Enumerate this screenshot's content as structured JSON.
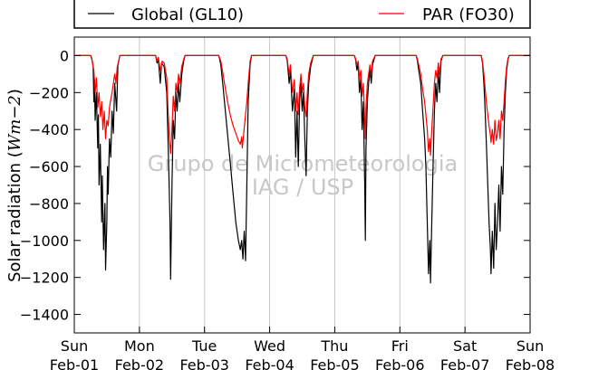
{
  "chart_data": {
    "type": "line",
    "ylabel": "Solar radiation ($Wm{-2}$)",
    "ylabel_text": "Solar radiation (",
    "ylabel_math": "Wm−2",
    "ylabel_close": ")",
    "ylim": [
      -1500,
      100
    ],
    "yticks": [
      0,
      -200,
      -400,
      -600,
      -800,
      -1000,
      -1200,
      -1400
    ],
    "xlim": [
      0,
      7
    ],
    "xticks": [
      {
        "day": "Sun",
        "date": "Feb-01"
      },
      {
        "day": "Mon",
        "date": "Feb-02"
      },
      {
        "day": "Tue",
        "date": "Feb-03"
      },
      {
        "day": "Wed",
        "date": "Feb-04"
      },
      {
        "day": "Thu",
        "date": "Feb-05"
      },
      {
        "day": "Fri",
        "date": "Feb-06"
      },
      {
        "day": "Sat",
        "date": "Feb-07"
      },
      {
        "day": "Sun",
        "date": "Feb-08"
      }
    ],
    "grid": "vertical",
    "legend_position": "top, outside plot",
    "watermark": [
      "Grupo de Micrometeorologia",
      "IAG / USP"
    ],
    "series": [
      {
        "name": "Global (GL10)",
        "color": "#000000",
        "points": [
          [
            0.0,
            0
          ],
          [
            0.25,
            0
          ],
          [
            0.27,
            -20
          ],
          [
            0.29,
            -60
          ],
          [
            0.3,
            -250
          ],
          [
            0.31,
            -130
          ],
          [
            0.32,
            -350
          ],
          [
            0.34,
            -200
          ],
          [
            0.36,
            -500
          ],
          [
            0.37,
            -320
          ],
          [
            0.38,
            -700
          ],
          [
            0.4,
            -480
          ],
          [
            0.42,
            -900
          ],
          [
            0.43,
            -650
          ],
          [
            0.45,
            -1050
          ],
          [
            0.47,
            -800
          ],
          [
            0.48,
            -1160
          ],
          [
            0.5,
            -900
          ],
          [
            0.51,
            -600
          ],
          [
            0.52,
            -750
          ],
          [
            0.54,
            -450
          ],
          [
            0.56,
            -550
          ],
          [
            0.58,
            -300
          ],
          [
            0.6,
            -420
          ],
          [
            0.62,
            -150
          ],
          [
            0.65,
            -300
          ],
          [
            0.67,
            -50
          ],
          [
            0.7,
            0
          ],
          [
            1.0,
            0
          ],
          [
            1.25,
            0
          ],
          [
            1.27,
            -40
          ],
          [
            1.29,
            -20
          ],
          [
            1.32,
            -150
          ],
          [
            1.34,
            -40
          ],
          [
            1.38,
            -60
          ],
          [
            1.42,
            -200
          ],
          [
            1.45,
            -600
          ],
          [
            1.47,
            -900
          ],
          [
            1.48,
            -1210
          ],
          [
            1.5,
            -700
          ],
          [
            1.52,
            -350
          ],
          [
            1.54,
            -450
          ],
          [
            1.56,
            -200
          ],
          [
            1.58,
            -300
          ],
          [
            1.6,
            -150
          ],
          [
            1.62,
            -250
          ],
          [
            1.65,
            -100
          ],
          [
            1.68,
            -30
          ],
          [
            1.7,
            0
          ],
          [
            2.0,
            0
          ],
          [
            2.22,
            0
          ],
          [
            2.25,
            -50
          ],
          [
            2.28,
            -150
          ],
          [
            2.32,
            -300
          ],
          [
            2.36,
            -450
          ],
          [
            2.4,
            -600
          ],
          [
            2.44,
            -750
          ],
          [
            2.48,
            -900
          ],
          [
            2.52,
            -1000
          ],
          [
            2.55,
            -1050
          ],
          [
            2.57,
            -1000
          ],
          [
            2.59,
            -1100
          ],
          [
            2.61,
            -950
          ],
          [
            2.63,
            -1110
          ],
          [
            2.65,
            -700
          ],
          [
            2.67,
            -250
          ],
          [
            2.7,
            -50
          ],
          [
            2.72,
            0
          ],
          [
            3.0,
            0
          ],
          [
            3.25,
            0
          ],
          [
            3.27,
            -30
          ],
          [
            3.3,
            -150
          ],
          [
            3.32,
            -80
          ],
          [
            3.35,
            -300
          ],
          [
            3.38,
            -180
          ],
          [
            3.4,
            -550
          ],
          [
            3.42,
            -300
          ],
          [
            3.44,
            -600
          ],
          [
            3.46,
            -250
          ],
          [
            3.48,
            -150
          ],
          [
            3.5,
            -300
          ],
          [
            3.52,
            -200
          ],
          [
            3.54,
            -450
          ],
          [
            3.56,
            -650
          ],
          [
            3.58,
            -300
          ],
          [
            3.6,
            -150
          ],
          [
            3.63,
            -60
          ],
          [
            3.67,
            0
          ],
          [
            4.0,
            0
          ],
          [
            4.3,
            0
          ],
          [
            4.32,
            -20
          ],
          [
            4.34,
            -80
          ],
          [
            4.36,
            -40
          ],
          [
            4.38,
            -200
          ],
          [
            4.4,
            -120
          ],
          [
            4.42,
            -400
          ],
          [
            4.44,
            -250
          ],
          [
            4.46,
            -700
          ],
          [
            4.47,
            -1000
          ],
          [
            4.48,
            -500
          ],
          [
            4.5,
            -250
          ],
          [
            4.52,
            -150
          ],
          [
            4.54,
            -80
          ],
          [
            4.56,
            -150
          ],
          [
            4.58,
            -50
          ],
          [
            4.62,
            0
          ],
          [
            5.0,
            0
          ],
          [
            5.25,
            0
          ],
          [
            5.27,
            -30
          ],
          [
            5.29,
            -80
          ],
          [
            5.32,
            -150
          ],
          [
            5.35,
            -300
          ],
          [
            5.38,
            -450
          ],
          [
            5.4,
            -600
          ],
          [
            5.42,
            -900
          ],
          [
            5.44,
            -1180
          ],
          [
            5.46,
            -1000
          ],
          [
            5.47,
            -1230
          ],
          [
            5.49,
            -900
          ],
          [
            5.51,
            -600
          ],
          [
            5.53,
            -300
          ],
          [
            5.55,
            -150
          ],
          [
            5.57,
            -250
          ],
          [
            5.59,
            -80
          ],
          [
            5.61,
            -200
          ],
          [
            5.63,
            -30
          ],
          [
            5.66,
            0
          ],
          [
            6.0,
            0
          ],
          [
            6.25,
            0
          ],
          [
            6.27,
            -40
          ],
          [
            6.29,
            -150
          ],
          [
            6.31,
            -300
          ],
          [
            6.33,
            -500
          ],
          [
            6.35,
            -700
          ],
          [
            6.37,
            -900
          ],
          [
            6.39,
            -1050
          ],
          [
            6.4,
            -1180
          ],
          [
            6.42,
            -950
          ],
          [
            6.44,
            -1150
          ],
          [
            6.46,
            -800
          ],
          [
            6.48,
            -1050
          ],
          [
            6.5,
            -900
          ],
          [
            6.52,
            -700
          ],
          [
            6.54,
            -950
          ],
          [
            6.56,
            -600
          ],
          [
            6.58,
            -750
          ],
          [
            6.6,
            -400
          ],
          [
            6.62,
            -200
          ],
          [
            6.64,
            -80
          ],
          [
            6.66,
            -20
          ],
          [
            6.68,
            0
          ],
          [
            7.0,
            0
          ]
        ]
      },
      {
        "name": "PAR (FO30)",
        "color": "#ff0000",
        "points": [
          [
            0.0,
            0
          ],
          [
            0.25,
            0
          ],
          [
            0.27,
            -15
          ],
          [
            0.3,
            -80
          ],
          [
            0.32,
            -200
          ],
          [
            0.34,
            -120
          ],
          [
            0.36,
            -280
          ],
          [
            0.38,
            -200
          ],
          [
            0.4,
            -330
          ],
          [
            0.42,
            -250
          ],
          [
            0.44,
            -400
          ],
          [
            0.46,
            -300
          ],
          [
            0.48,
            -450
          ],
          [
            0.5,
            -350
          ],
          [
            0.52,
            -380
          ],
          [
            0.54,
            -280
          ],
          [
            0.56,
            -240
          ],
          [
            0.58,
            -200
          ],
          [
            0.6,
            -150
          ],
          [
            0.62,
            -100
          ],
          [
            0.64,
            -150
          ],
          [
            0.66,
            -60
          ],
          [
            0.68,
            -30
          ],
          [
            0.7,
            0
          ],
          [
            1.0,
            0
          ],
          [
            1.25,
            0
          ],
          [
            1.27,
            -30
          ],
          [
            1.29,
            -10
          ],
          [
            1.32,
            -80
          ],
          [
            1.35,
            -30
          ],
          [
            1.38,
            -40
          ],
          [
            1.42,
            -120
          ],
          [
            1.44,
            -300
          ],
          [
            1.46,
            -450
          ],
          [
            1.48,
            -530
          ],
          [
            1.5,
            -400
          ],
          [
            1.52,
            -220
          ],
          [
            1.54,
            -300
          ],
          [
            1.56,
            -150
          ],
          [
            1.58,
            -200
          ],
          [
            1.6,
            -100
          ],
          [
            1.62,
            -150
          ],
          [
            1.65,
            -60
          ],
          [
            1.68,
            -20
          ],
          [
            1.7,
            0
          ],
          [
            2.0,
            0
          ],
          [
            2.22,
            0
          ],
          [
            2.25,
            -30
          ],
          [
            2.28,
            -90
          ],
          [
            2.32,
            -180
          ],
          [
            2.36,
            -260
          ],
          [
            2.4,
            -330
          ],
          [
            2.44,
            -380
          ],
          [
            2.48,
            -420
          ],
          [
            2.52,
            -460
          ],
          [
            2.55,
            -480
          ],
          [
            2.57,
            -440
          ],
          [
            2.58,
            -500
          ],
          [
            2.6,
            -430
          ],
          [
            2.62,
            -350
          ],
          [
            2.65,
            -250
          ],
          [
            2.67,
            -150
          ],
          [
            2.7,
            -30
          ],
          [
            2.72,
            0
          ],
          [
            3.0,
            0
          ],
          [
            3.25,
            0
          ],
          [
            3.27,
            -20
          ],
          [
            3.3,
            -100
          ],
          [
            3.32,
            -50
          ],
          [
            3.35,
            -200
          ],
          [
            3.38,
            -130
          ],
          [
            3.4,
            -300
          ],
          [
            3.42,
            -200
          ],
          [
            3.44,
            -320
          ],
          [
            3.46,
            -180
          ],
          [
            3.48,
            -100
          ],
          [
            3.5,
            -200
          ],
          [
            3.52,
            -150
          ],
          [
            3.54,
            -280
          ],
          [
            3.56,
            -330
          ],
          [
            3.58,
            -200
          ],
          [
            3.6,
            -100
          ],
          [
            3.63,
            -40
          ],
          [
            3.67,
            0
          ],
          [
            4.0,
            0
          ],
          [
            4.3,
            0
          ],
          [
            4.32,
            -15
          ],
          [
            4.34,
            -50
          ],
          [
            4.36,
            -30
          ],
          [
            4.38,
            -120
          ],
          [
            4.4,
            -80
          ],
          [
            4.42,
            -220
          ],
          [
            4.44,
            -150
          ],
          [
            4.46,
            -350
          ],
          [
            4.47,
            -450
          ],
          [
            4.48,
            -280
          ],
          [
            4.5,
            -150
          ],
          [
            4.52,
            -100
          ],
          [
            4.54,
            -50
          ],
          [
            4.56,
            -100
          ],
          [
            4.58,
            -30
          ],
          [
            4.62,
            0
          ],
          [
            5.0,
            0
          ],
          [
            5.25,
            0
          ],
          [
            5.27,
            -20
          ],
          [
            5.29,
            -50
          ],
          [
            5.32,
            -100
          ],
          [
            5.35,
            -180
          ],
          [
            5.38,
            -250
          ],
          [
            5.4,
            -320
          ],
          [
            5.42,
            -400
          ],
          [
            5.44,
            -520
          ],
          [
            5.46,
            -450
          ],
          [
            5.47,
            -540
          ],
          [
            5.49,
            -400
          ],
          [
            5.51,
            -280
          ],
          [
            5.53,
            -150
          ],
          [
            5.55,
            -80
          ],
          [
            5.57,
            -120
          ],
          [
            5.59,
            -40
          ],
          [
            5.61,
            -100
          ],
          [
            5.63,
            -20
          ],
          [
            5.66,
            0
          ],
          [
            6.0,
            0
          ],
          [
            6.25,
            0
          ],
          [
            6.27,
            -30
          ],
          [
            6.29,
            -100
          ],
          [
            6.31,
            -180
          ],
          [
            6.33,
            -260
          ],
          [
            6.35,
            -320
          ],
          [
            6.37,
            -380
          ],
          [
            6.39,
            -430
          ],
          [
            6.4,
            -470
          ],
          [
            6.42,
            -400
          ],
          [
            6.44,
            -480
          ],
          [
            6.46,
            -350
          ],
          [
            6.48,
            -460
          ],
          [
            6.5,
            -420
          ],
          [
            6.52,
            -350
          ],
          [
            6.54,
            -450
          ],
          [
            6.56,
            -300
          ],
          [
            6.58,
            -350
          ],
          [
            6.6,
            -250
          ],
          [
            6.62,
            -140
          ],
          [
            6.64,
            -60
          ],
          [
            6.66,
            -15
          ],
          [
            6.68,
            0
          ],
          [
            7.0,
            0
          ]
        ]
      }
    ]
  }
}
